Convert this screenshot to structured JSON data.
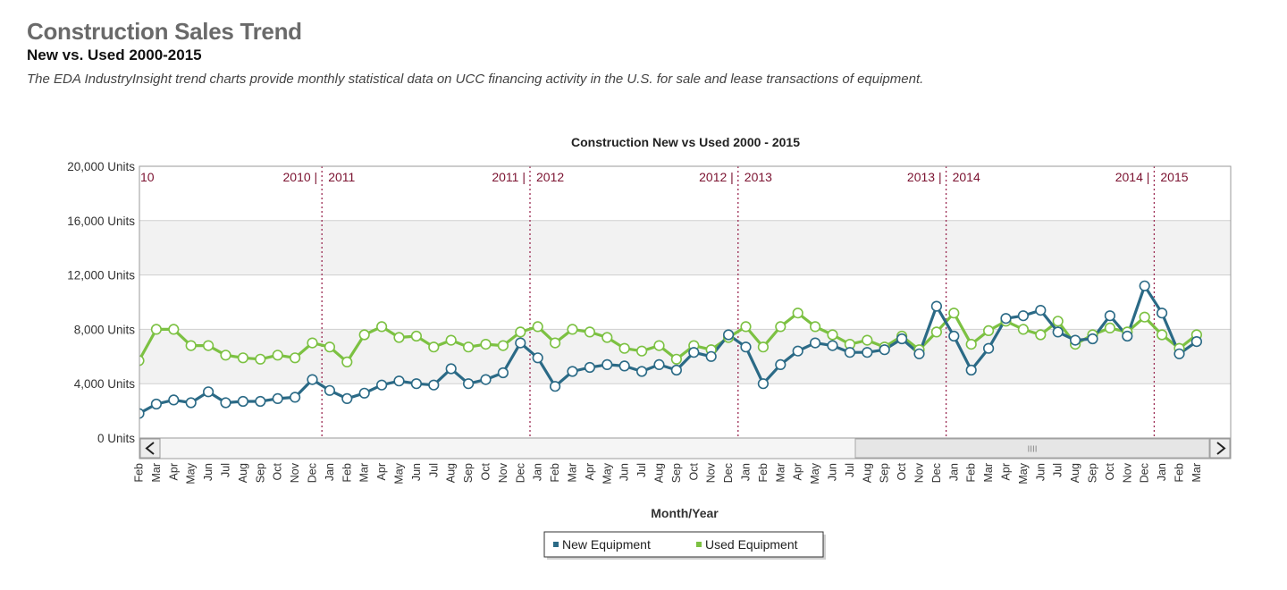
{
  "page": {
    "title": "Construction Sales Trend",
    "subtitle": "New vs. Used 2000-2015",
    "description": "The EDA IndustryInsight trend charts provide monthly statistical data on UCC financing activity in the U.S. for sale and lease transactions of equipment."
  },
  "scroll": {
    "left_icon": "chevron-left-icon",
    "right_icon": "chevron-right-icon",
    "thumb_grip": "IIII"
  },
  "colors": {
    "new": "#2b6a86",
    "used": "#7cc142",
    "year_divider": "#9b2a52",
    "band": "#f2f2f2",
    "grid": "#cfcfcf"
  },
  "chart_data": {
    "type": "line",
    "title": "Construction New vs Used 2000 - 2015",
    "xlabel": "Month/Year",
    "ylabel": "",
    "ylim": [
      0,
      20000
    ],
    "yticks": [
      "0 Units",
      "4,000 Units",
      "8,000 Units",
      "12,000 Units",
      "16,000 Units",
      "20,000 Units"
    ],
    "grid": true,
    "legend_position": "bottom-center",
    "categories": [
      "Feb",
      "Mar",
      "Apr",
      "May",
      "Jun",
      "Jul",
      "Aug",
      "Sep",
      "Oct",
      "Nov",
      "Dec",
      "Jan",
      "Feb",
      "Mar",
      "Apr",
      "May",
      "Jun",
      "Jul",
      "Aug",
      "Sep",
      "Oct",
      "Nov",
      "Dec",
      "Jan",
      "Feb",
      "Mar",
      "Apr",
      "May",
      "Jun",
      "Jul",
      "Aug",
      "Sep",
      "Oct",
      "Nov",
      "Dec",
      "Jan",
      "Feb",
      "Mar",
      "Apr",
      "May",
      "Jun",
      "Jul",
      "Aug",
      "Sep",
      "Oct",
      "Nov",
      "Dec",
      "Jan",
      "Feb",
      "Mar",
      "Apr",
      "May",
      "Jun",
      "Jul",
      "Aug",
      "Sep",
      "Oct",
      "Nov",
      "Dec",
      "Jan",
      "Feb",
      "Mar"
    ],
    "year_dividers": [
      {
        "after": 10,
        "label": "2010 | 2011"
      },
      {
        "after": 22,
        "label": "2011 | 2012"
      },
      {
        "after": 34,
        "label": "2012 | 2013"
      },
      {
        "after": 46,
        "label": "2013 | 2014"
      },
      {
        "after": 58,
        "label": "2014 | 2015"
      }
    ],
    "partial_year_label": "10",
    "series": [
      {
        "name": "New Equipment",
        "color": "#2b6a86",
        "values": [
          1800,
          2500,
          2800,
          2600,
          3400,
          2600,
          2700,
          2700,
          2900,
          3000,
          4300,
          3500,
          2900,
          3300,
          3900,
          4200,
          4000,
          3900,
          5100,
          4000,
          4300,
          4800,
          7000,
          5900,
          3800,
          4900,
          5200,
          5400,
          5300,
          4900,
          5400,
          5000,
          6300,
          6000,
          7600,
          6700,
          4000,
          5400,
          6400,
          7000,
          6800,
          6300,
          6300,
          6500,
          7300,
          6200,
          9700,
          7500,
          5000,
          6600,
          8800,
          9000,
          9400,
          7800,
          7200,
          7300,
          9000,
          7500,
          11200,
          9200,
          6200,
          7100
        ]
      },
      {
        "name": "Used Equipment",
        "color": "#7cc142",
        "values": [
          5700,
          8000,
          8000,
          6800,
          6800,
          6100,
          5900,
          5800,
          6100,
          5900,
          7000,
          6700,
          5600,
          7600,
          8200,
          7400,
          7500,
          6700,
          7200,
          6700,
          6900,
          6800,
          7800,
          8200,
          7000,
          8000,
          7800,
          7400,
          6600,
          6400,
          6800,
          5800,
          6800,
          6500,
          7400,
          8200,
          6700,
          8200,
          9200,
          8200,
          7600,
          6900,
          7200,
          6700,
          7500,
          6500,
          7800,
          9200,
          6900,
          7900,
          8600,
          8000,
          7600,
          8600,
          6900,
          7600,
          8100,
          7800,
          8900,
          7600,
          6600,
          7600
        ]
      }
    ]
  }
}
